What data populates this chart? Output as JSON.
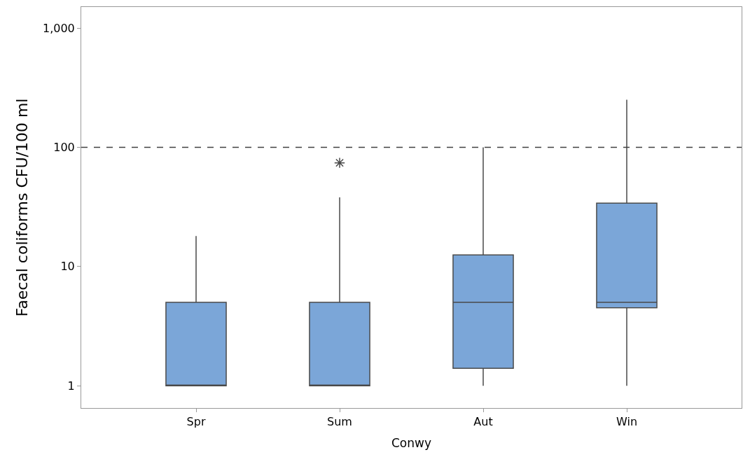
{
  "chart_data": {
    "type": "box",
    "xlabel": "Conwy",
    "ylabel": "Faecal coliforms CFU/100 ml",
    "categories": [
      "Spr",
      "Sum",
      "Aut",
      "Win"
    ],
    "color": "#7ba6d8",
    "boxes": [
      {
        "low": 1,
        "q1": 1,
        "median": 1,
        "q3": 5,
        "high": 18
      },
      {
        "low": 1,
        "q1": 1,
        "median": 1,
        "q3": 5,
        "high": 38,
        "outliers": [
          74
        ]
      },
      {
        "low": 1,
        "q1": 1.4,
        "median": 5,
        "q3": 12.5,
        "high": 100
      },
      {
        "low": 1,
        "q1": 4.5,
        "median": 5,
        "q3": 34,
        "high": 250
      }
    ],
    "log": "y",
    "ylim": [
      0.65,
      1500
    ],
    "yticks": [
      1,
      10,
      100,
      {
        "value": 1000,
        "label": "1,000"
      }
    ],
    "ref_lines": [
      {
        "axis": "y",
        "value": 100,
        "line_style": "dashed",
        "color": "#404040"
      }
    ]
  }
}
